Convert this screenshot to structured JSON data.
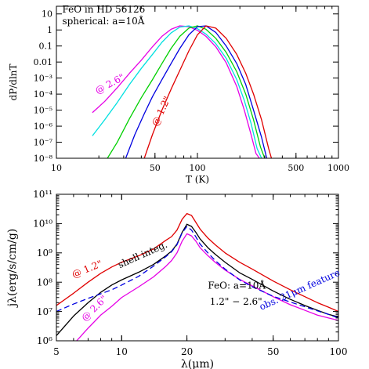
{
  "chart_data": [
    {
      "type": "line",
      "xscale": "log",
      "yscale": "log",
      "xlim": [
        10,
        1000
      ],
      "ylim": [
        1e-08,
        30
      ],
      "xlabel": "T   (K)",
      "ylabel": "dP/dlnT",
      "x_ticks": [
        {
          "value": 10,
          "label": "10"
        },
        {
          "value": 50,
          "label": "50"
        },
        {
          "value": 100,
          "label": "100"
        },
        {
          "value": 500,
          "label": "500"
        },
        {
          "value": 1000,
          "label": "1000"
        }
      ],
      "y_ticks": [
        {
          "value": 10,
          "label": "10"
        },
        {
          "value": 1,
          "label": "1"
        },
        {
          "value": 0.1,
          "label": "0.1"
        },
        {
          "value": 0.01,
          "label": "0.01"
        },
        {
          "value": 0.001,
          "label": "10⁻³"
        },
        {
          "value": 0.0001,
          "label": "10⁻⁴"
        },
        {
          "value": 1e-05,
          "label": "10⁻⁵"
        },
        {
          "value": 1e-06,
          "label": "10⁻⁶"
        },
        {
          "value": 1e-07,
          "label": "10⁻⁷"
        },
        {
          "value": 1e-08,
          "label": "10⁻⁸"
        }
      ],
      "annotations": [
        {
          "text": "FeO in HD 56126",
          "x": 11.0,
          "y": 12
        },
        {
          "text": "spherical: a=10Å",
          "x": 11.0,
          "y": 2.2
        },
        {
          "text": "@ 2.6\"",
          "x": 19.5,
          "y": 0.0001,
          "color": "#e600e6",
          "rotate": -28
        },
        {
          "text": "@ 1.2\"",
          "x": 52,
          "y": 9e-07,
          "color": "#e00000",
          "rotate": -65
        }
      ],
      "series": [
        {
          "color": "#e600e6",
          "x": [
            18,
            22,
            27,
            33,
            40,
            48,
            56,
            65,
            75,
            87,
            100,
            115,
            135,
            160,
            190,
            215,
            240,
            260,
            275
          ],
          "y": [
            7e-06,
            3.5e-05,
            0.00025,
            0.002,
            0.013,
            0.09,
            0.4,
            1.1,
            1.8,
            1.6,
            0.95,
            0.4,
            0.09,
            0.009,
            0.0003,
            1e-05,
            3e-07,
            2e-08,
            1e-08
          ]
        },
        {
          "color": "#00e0e0",
          "x": [
            18,
            22,
            27,
            33,
            40,
            48,
            56,
            65,
            75,
            87,
            100,
            115,
            135,
            160,
            190,
            215,
            240,
            265,
            285
          ],
          "y": [
            2.5e-07,
            2.5e-06,
            3e-05,
            0.0004,
            0.004,
            0.03,
            0.17,
            0.65,
            1.5,
            1.8,
            1.2,
            0.55,
            0.14,
            0.017,
            0.0008,
            4e-05,
            1.5e-06,
            4e-08,
            1e-08
          ]
        },
        {
          "color": "#00d000",
          "x": [
            23,
            27,
            33,
            40,
            48,
            56,
            65,
            75,
            87,
            100,
            115,
            135,
            160,
            190,
            220,
            250,
            280,
            300
          ],
          "y": [
            1e-08,
            1e-07,
            3e-06,
            6e-05,
            0.0008,
            0.008,
            0.07,
            0.4,
            1.3,
            1.8,
            1.1,
            0.3,
            0.04,
            0.0025,
            0.0001,
            2.5e-06,
            5e-08,
            1e-08
          ]
        },
        {
          "color": "#0000e0",
          "x": [
            31,
            36,
            42,
            48,
            56,
            65,
            75,
            87,
            100,
            115,
            135,
            160,
            190,
            220,
            250,
            285,
            310
          ],
          "y": [
            1e-08,
            3e-07,
            6e-06,
            7e-05,
            0.0008,
            0.008,
            0.07,
            0.5,
            1.6,
            1.8,
            0.7,
            0.1,
            0.008,
            0.0004,
            1e-05,
            2e-07,
            1e-08
          ]
        },
        {
          "color": "#e00000",
          "x": [
            42,
            48,
            56,
            65,
            75,
            87,
            100,
            115,
            135,
            160,
            190,
            220,
            250,
            285,
            320,
            335
          ],
          "y": [
            1e-08,
            3e-07,
            1e-05,
            0.0002,
            0.003,
            0.05,
            0.5,
            1.8,
            1.3,
            0.3,
            0.03,
            0.002,
            0.0001,
            2.5e-06,
            4e-08,
            1e-08
          ]
        }
      ]
    },
    {
      "type": "line",
      "xscale": "log",
      "yscale": "log",
      "xlim": [
        5,
        100
      ],
      "ylim": [
        1000000,
        100000000000
      ],
      "xlabel": "λ(μm)",
      "ylabel": "jλ(erg/s/cm/g)",
      "x_ticks": [
        {
          "value": 5,
          "label": "5"
        },
        {
          "value": 10,
          "label": "10"
        },
        {
          "value": 20,
          "label": "20"
        },
        {
          "value": 50,
          "label": "50"
        },
        {
          "value": 100,
          "label": "100"
        }
      ],
      "y_ticks": [
        {
          "value": 1000000,
          "label": "10⁶"
        },
        {
          "value": 10000000,
          "label": "10⁷"
        },
        {
          "value": 100000000,
          "label": "10⁸"
        },
        {
          "value": 1000000000,
          "label": "10⁹"
        },
        {
          "value": 10000000000,
          "label": "10¹⁰"
        },
        {
          "value": 100000000000,
          "label": "10¹¹"
        }
      ],
      "annotations": [
        {
          "text": "@ 1.2\"",
          "x": 6.0,
          "y": 140000000,
          "color": "#e00000",
          "rotate": -22
        },
        {
          "text": "shell integ.",
          "x": 9.8,
          "y": 300000000,
          "color": "#000000",
          "rotate": -24
        },
        {
          "text": "@ 2.6\"",
          "x": 6.8,
          "y": 4500000,
          "color": "#e600e6",
          "rotate": -45
        },
        {
          "text": "FeO: a=10Å",
          "x": 25,
          "y": 60000000,
          "color": "#000000"
        },
        {
          "text": "1.2\" − 2.6\"",
          "x": 25.5,
          "y": 17000000,
          "color": "#000000"
        },
        {
          "text": "obs. 21μm feature",
          "x": 44,
          "y": 11000000,
          "color": "#0000e0",
          "rotate": -24
        }
      ],
      "series": [
        {
          "name": "@ 1.2\"",
          "color": "#e00000",
          "dash": "",
          "x": [
            5,
            6,
            7,
            8,
            9,
            10,
            12,
            14,
            16,
            17,
            18,
            19,
            20,
            21,
            22,
            23,
            25,
            27,
            30,
            35,
            40,
            50,
            60,
            70,
            80,
            90,
            100
          ],
          "y": [
            16000000,
            42000000,
            100000000,
            200000000,
            330000000,
            480000000,
            800000000,
            1350000000,
            2700000000,
            3600000000,
            6000000000,
            14000000000,
            22000000000,
            19000000000,
            11000000000,
            6500000000,
            3200000000,
            1900000000,
            1000000000,
            480000000,
            280000000,
            110000000,
            55000000,
            32000000,
            20000000,
            14000000,
            10000000
          ]
        },
        {
          "name": "shell integ.",
          "color": "#000000",
          "dash": "",
          "x": [
            5,
            6,
            7,
            8,
            9,
            10,
            12,
            14,
            16,
            17,
            18,
            19,
            20,
            21,
            22,
            23,
            25,
            27,
            30,
            35,
            40,
            50,
            60,
            70,
            80,
            90,
            100
          ],
          "y": [
            1500000,
            7000000,
            20000000,
            45000000,
            80000000,
            120000000,
            220000000,
            400000000,
            800000000,
            1150000000,
            2000000000,
            5000000000,
            9500000000,
            8000000000,
            5000000000,
            3000000000,
            1500000000,
            900000000,
            480000000,
            210000000,
            125000000,
            50000000,
            26000000,
            16000000,
            11000000,
            8000000,
            6500000
          ]
        },
        {
          "name": "@ 2.6\"",
          "color": "#e600e6",
          "dash": "",
          "x": [
            6.2,
            7,
            8,
            9,
            10,
            12,
            14,
            16,
            17,
            18,
            19,
            20,
            21,
            22,
            23,
            25,
            27,
            30,
            35,
            40,
            50,
            60,
            70,
            80,
            90,
            100
          ],
          "y": [
            1000000,
            2700000,
            7500000,
            15000000,
            30000000,
            70000000,
            150000000,
            350000000,
            550000000,
            1000000000,
            2500000000,
            4500000000,
            3800000000,
            2500000000,
            1500000000,
            800000000,
            480000000,
            260000000,
            125000000,
            75000000,
            32000000,
            17000000,
            11000000,
            7500000,
            6000000,
            5000000
          ]
        },
        {
          "name": "obs. 21μm feature",
          "color": "#0000e0",
          "dash": "7,4",
          "x": [
            5,
            6,
            7,
            8,
            9,
            10,
            12,
            14,
            16,
            17,
            18,
            19,
            20,
            21,
            22,
            23,
            25,
            27,
            30,
            35,
            40,
            50,
            60,
            70,
            80,
            90,
            100
          ],
          "y": [
            10000000,
            18000000,
            28000000,
            40000000,
            55000000,
            80000000,
            160000000,
            350000000,
            750000000,
            1100000000,
            1900000000,
            4800000000,
            8000000000,
            6000000000,
            3500000000,
            2000000000,
            1000000000,
            550000000,
            280000000,
            120000000,
            70000000,
            33000000,
            21000000,
            14500000,
            10500000,
            8000000,
            6000000
          ]
        }
      ]
    }
  ]
}
